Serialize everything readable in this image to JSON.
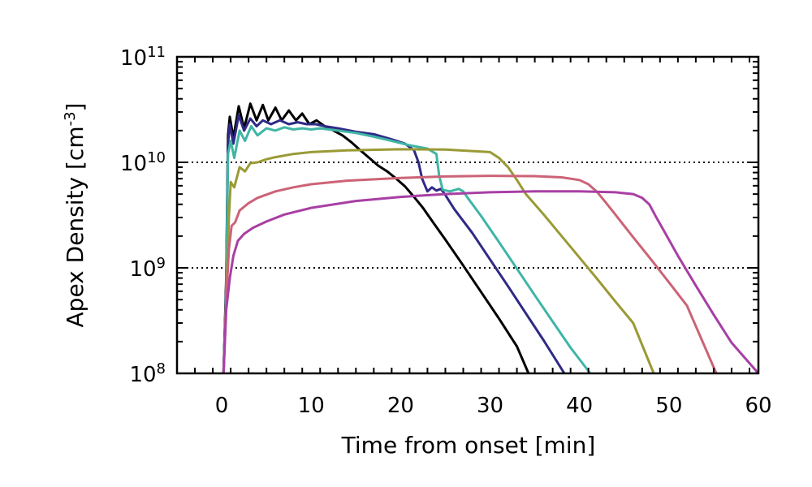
{
  "chart_data": {
    "type": "line",
    "title": "",
    "xlabel": "Time from onset [min]",
    "ylabel": {
      "main": "Apex Density [cm",
      "exp": "-3",
      "close": "]"
    },
    "xlim": [
      -5,
      60
    ],
    "ylim": [
      100000000.0,
      100000000000.0
    ],
    "yscale": "log",
    "xticks": [
      {
        "value": 0,
        "label": "0"
      },
      {
        "value": 10,
        "label": "10"
      },
      {
        "value": 20,
        "label": "20"
      },
      {
        "value": 30,
        "label": "30"
      },
      {
        "value": 40,
        "label": "40"
      },
      {
        "value": 50,
        "label": "50"
      },
      {
        "value": 60,
        "label": "60"
      }
    ],
    "yticks": [
      {
        "value": 100000000.0,
        "base": "10",
        "exp": "8"
      },
      {
        "value": 1000000000.0,
        "base": "10",
        "exp": "9"
      },
      {
        "value": 10000000000.0,
        "base": "10",
        "exp": "10"
      },
      {
        "value": 100000000000.0,
        "base": "10",
        "exp": "11"
      }
    ],
    "reference_lines": [
      1000000000.0,
      10000000000.0
    ],
    "series": [
      {
        "name": "black",
        "color": "#000000",
        "x": [
          0.2,
          0.5,
          0.7,
          0.9,
          1.3,
          1.9,
          2.5,
          3.2,
          3.9,
          4.6,
          5.2,
          6.0,
          6.7,
          7.5,
          8.3,
          9.0,
          9.8,
          10.6,
          11.5,
          12.5,
          13.5,
          14.5,
          15.5,
          16.5,
          17.5,
          18.5,
          19.5,
          20.5,
          21.5,
          22.5,
          23.5,
          25,
          27,
          29,
          31,
          33,
          34.3
        ],
        "y": [
          100000000.0,
          800000000.0,
          18000000000.0,
          27000000000.0,
          17000000000.0,
          34000000000.0,
          21000000000.0,
          36000000000.0,
          25000000000.0,
          35000000000.0,
          25000000000.0,
          33000000000.0,
          25000000000.0,
          31000000000.0,
          25000000000.0,
          29000000000.0,
          23000000000.0,
          25000000000.0,
          22000000000.0,
          20000000000.0,
          18000000000.0,
          15500000000.0,
          13000000000.0,
          11000000000.0,
          9300000000.0,
          8200000000.0,
          7000000000.0,
          5900000000.0,
          4700000000.0,
          3700000000.0,
          2800000000.0,
          1850000000.0,
          1050000000.0,
          590000000.0,
          330000000.0,
          180000000.0,
          100000000.0
        ]
      },
      {
        "name": "navy",
        "color": "#2f2a86",
        "x": [
          0.2,
          0.5,
          0.7,
          0.9,
          1.3,
          1.9,
          2.5,
          3.2,
          3.9,
          4.6,
          5.5,
          6.5,
          7.5,
          8.5,
          9.5,
          10.5,
          11.5,
          13,
          15,
          17,
          19,
          20.5,
          21.5,
          22,
          22.4,
          23,
          23.5,
          24,
          24.5,
          25,
          26,
          28,
          30,
          32,
          34,
          36,
          38.3
        ],
        "y": [
          100000000.0,
          700000000.0,
          15000000000.0,
          23000000000.0,
          15000000000.0,
          28000000000.0,
          20000000000.0,
          26000000000.0,
          22000000000.0,
          25000000000.0,
          23000000000.0,
          25000000000.0,
          23000000000.0,
          24000000000.0,
          23000000000.0,
          23000000000.0,
          22000000000.0,
          21000000000.0,
          19500000000.0,
          18500000000.0,
          16500000000.0,
          15000000000.0,
          13000000000.0,
          10000000000.0,
          7000000000.0,
          5300000000.0,
          5800000000.0,
          5400000000.0,
          5600000000.0,
          4900000000.0,
          3600000000.0,
          2150000000.0,
          1200000000.0,
          670000000.0,
          370000000.0,
          205000000.0,
          100000000.0
        ]
      },
      {
        "name": "teal",
        "color": "#40b5a5",
        "x": [
          0.2,
          0.5,
          0.7,
          1.0,
          1.4,
          2.0,
          2.6,
          3.3,
          4.0,
          5,
          6,
          7,
          8,
          9,
          10,
          11,
          12,
          13,
          15,
          17,
          19,
          21,
          23,
          24,
          24.3,
          24.7,
          25.5,
          26.5,
          27,
          27.5,
          29,
          31,
          33,
          35,
          37,
          39,
          41.2
        ],
        "y": [
          100000000.0,
          600000000.0,
          12000000000.0,
          16000000000.0,
          11000000000.0,
          20000000000.0,
          16000000000.0,
          22000000000.0,
          18000000000.0,
          21000000000.0,
          20000000000.0,
          21500000000.0,
          20500000000.0,
          21000000000.0,
          20500000000.0,
          21000000000.0,
          20500000000.0,
          20000000000.0,
          19000000000.0,
          17500000000.0,
          16000000000.0,
          14500000000.0,
          13500000000.0,
          12000000000.0,
          7500000000.0,
          5500000000.0,
          5300000000.0,
          5600000000.0,
          5300000000.0,
          4600000000.0,
          3100000000.0,
          1750000000.0,
          980000000.0,
          550000000.0,
          310000000.0,
          175000000.0,
          100000000.0
        ]
      },
      {
        "name": "olive",
        "color": "#9a9a36",
        "x": [
          0.2,
          0.5,
          0.8,
          1.0,
          1.4,
          2.0,
          2.6,
          3.2,
          4,
          5,
          6,
          8,
          10,
          14,
          20,
          25,
          30,
          31,
          32,
          33,
          34,
          36,
          38,
          40,
          42,
          44,
          46,
          48.3
        ],
        "y": [
          100000000.0,
          500000000.0,
          3000000000.0,
          6500000000.0,
          5800000000.0,
          9000000000.0,
          8200000000.0,
          9800000000.0,
          10000000000.0,
          10700000000.0,
          11200000000.0,
          12000000000.0,
          12500000000.0,
          13000000000.0,
          13300000000.0,
          13200000000.0,
          12500000000.0,
          11000000000.0,
          9000000000.0,
          6800000000.0,
          5000000000.0,
          3200000000.0,
          2000000000.0,
          1250000000.0,
          780000000.0,
          480000000.0,
          300000000.0,
          100000000.0
        ]
      },
      {
        "name": "rose",
        "color": "#cc6377",
        "x": [
          0.2,
          0.5,
          0.8,
          1.1,
          1.5,
          2,
          3,
          4,
          6,
          8,
          10,
          14,
          20,
          25,
          30,
          35,
          38,
          40,
          41,
          42,
          43,
          44,
          46,
          48,
          50,
          52,
          55.3
        ],
        "y": [
          100000000.0,
          500000000.0,
          1500000000.0,
          2500000000.0,
          2700000000.0,
          3500000000.0,
          4100000000.0,
          4600000000.0,
          5300000000.0,
          5800000000.0,
          6200000000.0,
          6700000000.0,
          7100000000.0,
          7350000000.0,
          7450000000.0,
          7400000000.0,
          7200000000.0,
          6800000000.0,
          6200000000.0,
          5200000000.0,
          4100000000.0,
          3200000000.0,
          1950000000.0,
          1200000000.0,
          730000000.0,
          440000000.0,
          100000000.0
        ]
      },
      {
        "name": "magenta",
        "color": "#a83fa4",
        "x": [
          0.2,
          0.5,
          0.9,
          1.3,
          1.8,
          2.5,
          3.5,
          5,
          7,
          10,
          15,
          20,
          25,
          30,
          35,
          40,
          44,
          46,
          47,
          47.8,
          48.5,
          49.5,
          51,
          53,
          55,
          57,
          60
        ],
        "y": [
          100000000.0,
          400000000.0,
          800000000.0,
          1300000000.0,
          1800000000.0,
          2100000000.0,
          2400000000.0,
          2750000000.0,
          3200000000.0,
          3700000000.0,
          4300000000.0,
          4700000000.0,
          5000000000.0,
          5200000000.0,
          5300000000.0,
          5300000000.0,
          5200000000.0,
          5000000000.0,
          4600000000.0,
          4000000000.0,
          3100000000.0,
          2200000000.0,
          1300000000.0,
          680000000.0,
          360000000.0,
          195000000.0,
          100000000.0
        ]
      }
    ]
  }
}
